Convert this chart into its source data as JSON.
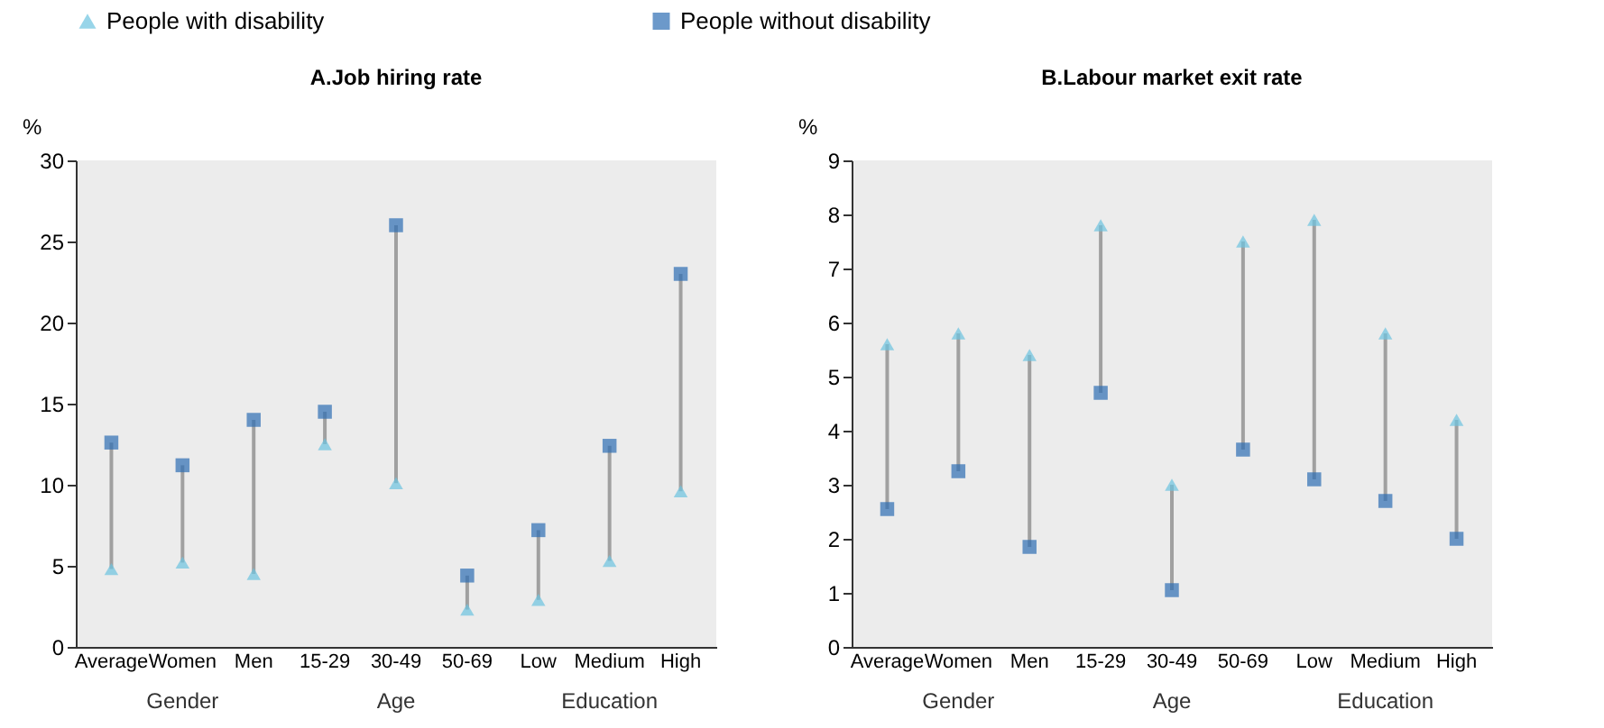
{
  "chart_data": [
    {
      "type": "scatter",
      "title": "A.Job hiring rate",
      "ylabel": "%",
      "categories": [
        "Average",
        "Women",
        "Men",
        "15-29",
        "30-49",
        "50-69",
        "Low",
        "Medium",
        "High"
      ],
      "series": [
        {
          "name": "People with disability",
          "color": "#6cc3e0",
          "marker": "triangle",
          "values": [
            4.8,
            5.2,
            4.5,
            12.5,
            10.1,
            2.3,
            2.9,
            5.3,
            9.6
          ]
        },
        {
          "name": "People without disability",
          "color": "#2e6db4",
          "marker": "square",
          "values": [
            12.6,
            11.2,
            14,
            14.5,
            26,
            4.4,
            7.2,
            12.4,
            23
          ]
        }
      ],
      "ylim": [
        0,
        30
      ],
      "yticks": [
        0,
        5,
        10,
        15,
        20,
        25,
        30
      ],
      "grid": false,
      "legend": "top",
      "annotations": [
        "Gender",
        "Age",
        "Education"
      ]
    },
    {
      "type": "scatter",
      "title": "B.Labour market exit rate",
      "ylabel": "%",
      "categories": [
        "Average",
        "Women",
        "Men",
        "15-29",
        "30-49",
        "50-69",
        "Low",
        "Medium",
        "High"
      ],
      "series": [
        {
          "name": "People with disability",
          "color": "#6cc3e0",
          "marker": "triangle",
          "values": [
            5.6,
            5.8,
            5.4,
            7.8,
            3.0,
            7.5,
            7.9,
            5.8,
            4.2
          ]
        },
        {
          "name": "People without disability",
          "color": "#2e6db4",
          "marker": "square",
          "values": [
            2.55,
            3.25,
            1.85,
            4.7,
            1.05,
            3.65,
            3.1,
            2.7,
            2.0
          ]
        }
      ],
      "ylim": [
        0,
        9
      ],
      "yticks": [
        0,
        1,
        2,
        3,
        4,
        5,
        6,
        7,
        8,
        9
      ],
      "grid": false,
      "legend": "top",
      "annotations": [
        "Gender",
        "Age",
        "Education"
      ]
    }
  ]
}
